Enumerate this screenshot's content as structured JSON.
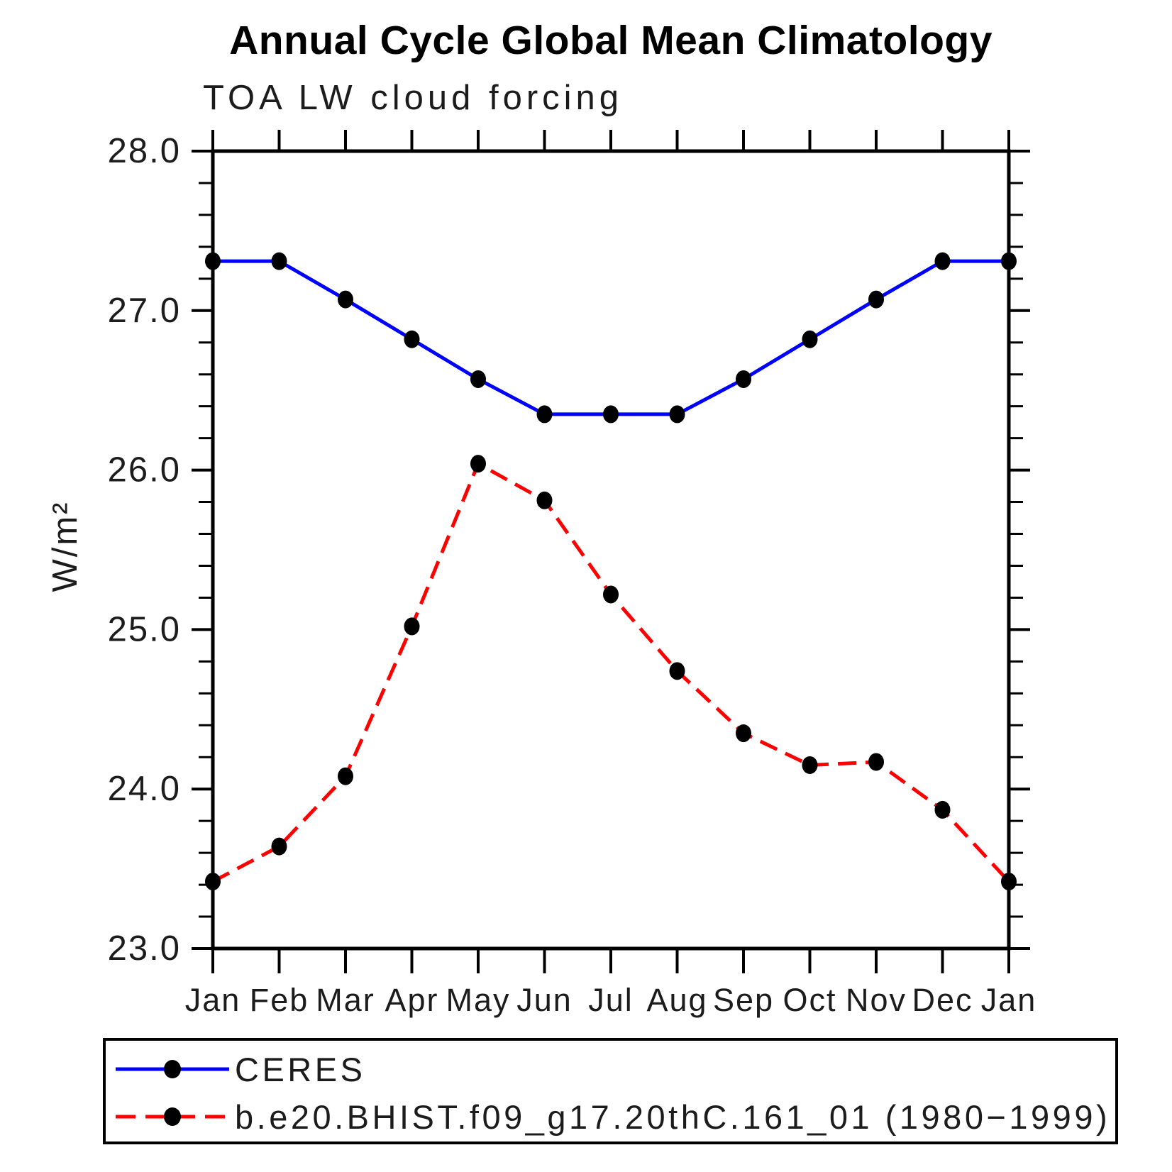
{
  "chart_data": {
    "type": "line",
    "title": "Annual Cycle Global Mean Climatology",
    "subtitle": "TOA LW cloud forcing",
    "ylabel": "W/m²",
    "xlabel": "",
    "categories": [
      "Jan",
      "Feb",
      "Mar",
      "Apr",
      "May",
      "Jun",
      "Jul",
      "Aug",
      "Sep",
      "Oct",
      "Nov",
      "Dec",
      "Jan"
    ],
    "series": [
      {
        "name": "CERES",
        "color": "#0000ff",
        "line_style": "solid",
        "marker": "filled-circle",
        "marker_color": "#000000",
        "values": [
          27.31,
          27.31,
          27.07,
          26.82,
          26.57,
          26.35,
          26.35,
          26.35,
          26.57,
          26.82,
          27.07,
          27.31,
          27.31
        ]
      },
      {
        "name": "b.e20.BHIST.f09_g17.20thC.161_01 (1980−1999)",
        "color": "#ff0000",
        "line_style": "dashed",
        "marker": "filled-circle",
        "marker_color": "#000000",
        "values": [
          23.42,
          23.64,
          24.08,
          25.02,
          26.04,
          25.81,
          25.22,
          24.74,
          24.35,
          24.15,
          24.17,
          23.87,
          23.42
        ]
      }
    ],
    "ylim": [
      23.0,
      28.0
    ],
    "ytick_major": [
      23.0,
      24.0,
      25.0,
      26.0,
      27.0,
      28.0
    ],
    "ytick_labels": [
      "23.0",
      "24.0",
      "25.0",
      "26.0",
      "27.0",
      "28.0"
    ],
    "ytick_minor_step": 0.2,
    "grid": false,
    "legend_position": "bottom-left-box"
  },
  "colors": {
    "axis": "#000000",
    "tick_label": "#1c1c1c",
    "ceres_line": "#0000ff",
    "model_line": "#ff0000",
    "marker": "#000000"
  }
}
